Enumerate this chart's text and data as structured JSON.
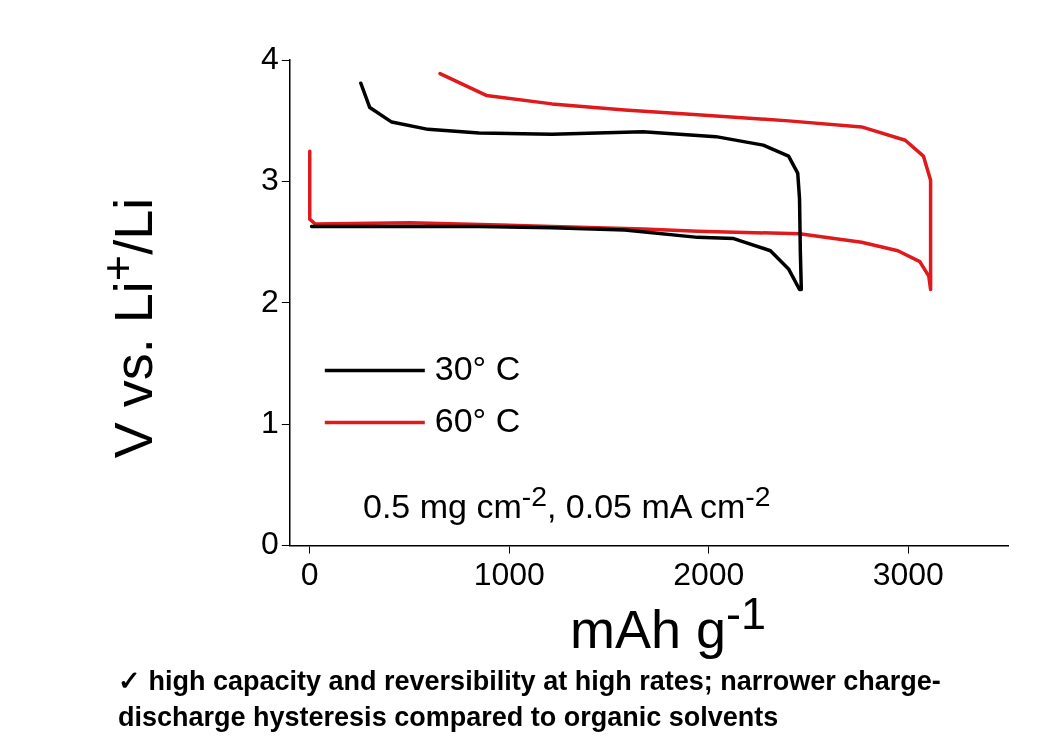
{
  "chart_data": {
    "type": "line",
    "xlabel": "mAh g$^{-1}$",
    "ylabel": "V vs. Li$^{+}$/Li",
    "xlim": [
      -100,
      3500
    ],
    "xticks": [
      0,
      1000,
      2000,
      3000
    ],
    "ylim": [
      0,
      4
    ],
    "yticks": [
      0,
      1,
      2,
      3,
      4
    ],
    "grid": false,
    "legend": "bottom left",
    "marker": "none",
    "line_style": "solid",
    "series": [
      {
        "name": "30° C",
        "color": "#000000",
        "x": [
          9,
          411,
          849,
          1214,
          1579,
          1944,
          2125,
          2309,
          2400,
          2455,
          2464,
          2459,
          2455,
          2446,
          2400,
          2273,
          2036,
          1670,
          1214,
          849,
          593,
          411,
          301,
          256
        ],
        "values": [
          2.63,
          2.63,
          2.63,
          2.62,
          2.6,
          2.54,
          2.53,
          2.43,
          2.28,
          2.11,
          2.11,
          2.43,
          2.86,
          3.07,
          3.21,
          3.3,
          3.37,
          3.41,
          3.39,
          3.4,
          3.43,
          3.49,
          3.61,
          3.81
        ]
      },
      {
        "name": "60° C",
        "color": "#e0191c",
        "x": [
          0,
          0,
          27,
          502,
          1214,
          1670,
          1944,
          2455,
          2766,
          2948,
          3058,
          3103,
          3112,
          3112,
          3076,
          2985,
          2766,
          2400,
          1944,
          1579,
          1214,
          885,
          653
        ],
        "values": [
          3.25,
          2.69,
          2.65,
          2.66,
          2.63,
          2.61,
          2.59,
          2.57,
          2.5,
          2.43,
          2.34,
          2.22,
          2.11,
          3.01,
          3.21,
          3.34,
          3.45,
          3.5,
          3.55,
          3.59,
          3.64,
          3.71,
          3.89
        ]
      }
    ],
    "annotations": [
      "0.5 mg cm$^{-2}$, 0.05 mA cm$^{-2}$",
      "✓ high capacity and reversibility at high rates; narrower charge-discharge hysteresis compared to organic solvents"
    ]
  }
}
